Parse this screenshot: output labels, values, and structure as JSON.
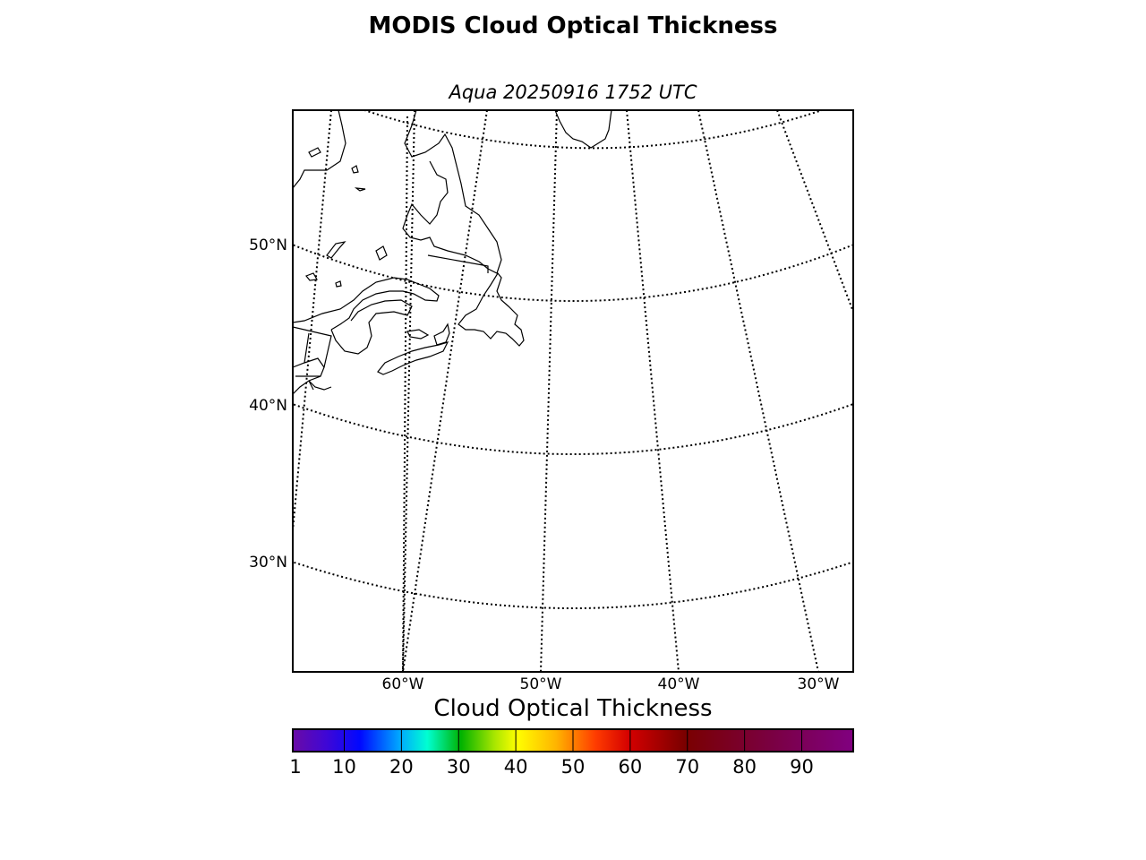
{
  "figure": {
    "title": "MODIS Cloud Optical Thickness",
    "subtitle": "Aqua 20250916 1752 UTC"
  },
  "map": {
    "projection": "conic (Lambert-like)",
    "lat_labels": [
      "50°N",
      "40°N",
      "30°N"
    ],
    "lon_labels": [
      "60°W",
      "50°W",
      "40°W",
      "30°W"
    ],
    "gridline_style": "dotted",
    "region": "North Atlantic off Newfoundland and Nova Scotia",
    "data_shown": "none (no cloud data rendered)"
  },
  "colorbar": {
    "label": "Cloud Optical Thickness",
    "tick_labels": [
      "1",
      "10",
      "20",
      "30",
      "40",
      "50",
      "60",
      "70",
      "80",
      "90"
    ],
    "range": [
      1,
      99
    ],
    "colors": [
      "#6a0aa6",
      "#3f07d6",
      "#0008ff",
      "#00a6ff",
      "#00ffd2",
      "#00b200",
      "#a8e600",
      "#ffff00",
      "#ffb400",
      "#ff3c00",
      "#d40000",
      "#7a0000",
      "#7a0040",
      "#800080"
    ]
  }
}
